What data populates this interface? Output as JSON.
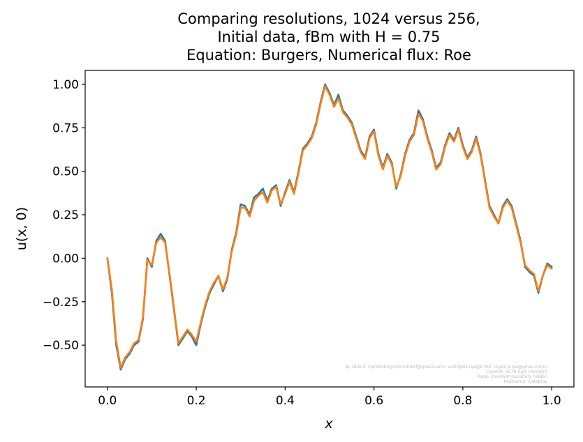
{
  "chart_data": {
    "type": "line",
    "title": [
      "Comparing resolutions, 1024 versus 256,",
      "Initial data, fBm with H = 0.75",
      "Equation: Burgers, Numerical flux: Roe"
    ],
    "xlabel": "x",
    "ylabel": "u(x, 0)",
    "xlim": [
      -0.05,
      1.05
    ],
    "ylim": [
      -0.74,
      1.08
    ],
    "xticks": [
      0.0,
      0.2,
      0.4,
      0.6,
      0.8,
      1.0
    ],
    "xtick_labels": [
      "0.0",
      "0.2",
      "0.4",
      "0.6",
      "0.8",
      "1.0"
    ],
    "yticks": [
      -0.5,
      -0.25,
      0.0,
      0.25,
      0.5,
      0.75,
      1.0
    ],
    "ytick_labels": [
      "−0.50",
      "−0.25",
      "0.00",
      "0.25",
      "0.50",
      "0.75",
      "1.00"
    ],
    "grid": false,
    "legend": "none",
    "series": [
      {
        "color": "#1f77b4",
        "resolution": 1024,
        "x": [
          0.0,
          0.01,
          0.02,
          0.03,
          0.04,
          0.05,
          0.06,
          0.07,
          0.08,
          0.09,
          0.1,
          0.11,
          0.12,
          0.13,
          0.14,
          0.15,
          0.16,
          0.17,
          0.18,
          0.19,
          0.2,
          0.21,
          0.22,
          0.23,
          0.24,
          0.25,
          0.26,
          0.27,
          0.28,
          0.29,
          0.3,
          0.31,
          0.32,
          0.33,
          0.34,
          0.35,
          0.36,
          0.37,
          0.38,
          0.39,
          0.4,
          0.41,
          0.42,
          0.43,
          0.44,
          0.45,
          0.46,
          0.47,
          0.48,
          0.49,
          0.5,
          0.51,
          0.52,
          0.53,
          0.54,
          0.55,
          0.56,
          0.57,
          0.58,
          0.59,
          0.6,
          0.61,
          0.62,
          0.63,
          0.64,
          0.65,
          0.66,
          0.67,
          0.68,
          0.69,
          0.7,
          0.71,
          0.72,
          0.73,
          0.74,
          0.75,
          0.76,
          0.77,
          0.78,
          0.79,
          0.8,
          0.81,
          0.82,
          0.83,
          0.84,
          0.85,
          0.86,
          0.87,
          0.88,
          0.89,
          0.9,
          0.91,
          0.92,
          0.93,
          0.94,
          0.95,
          0.96,
          0.97,
          0.98,
          0.99,
          1.0
        ],
        "y": [
          0.0,
          -0.2,
          -0.5,
          -0.64,
          -0.58,
          -0.55,
          -0.5,
          -0.48,
          -0.35,
          0.0,
          -0.05,
          0.1,
          0.14,
          0.1,
          -0.1,
          -0.3,
          -0.5,
          -0.46,
          -0.42,
          -0.45,
          -0.5,
          -0.38,
          -0.28,
          -0.2,
          -0.15,
          -0.1,
          -0.19,
          -0.12,
          0.05,
          0.15,
          0.31,
          0.3,
          0.25,
          0.35,
          0.37,
          0.4,
          0.33,
          0.4,
          0.42,
          0.3,
          0.38,
          0.45,
          0.38,
          0.5,
          0.63,
          0.66,
          0.7,
          0.78,
          0.9,
          1.0,
          0.95,
          0.88,
          0.94,
          0.85,
          0.82,
          0.78,
          0.7,
          0.62,
          0.58,
          0.7,
          0.74,
          0.6,
          0.52,
          0.6,
          0.55,
          0.4,
          0.48,
          0.6,
          0.68,
          0.72,
          0.85,
          0.8,
          0.7,
          0.62,
          0.52,
          0.55,
          0.65,
          0.72,
          0.68,
          0.75,
          0.65,
          0.58,
          0.62,
          0.7,
          0.6,
          0.45,
          0.3,
          0.25,
          0.2,
          0.3,
          0.34,
          0.3,
          0.2,
          0.1,
          -0.05,
          -0.08,
          -0.1,
          -0.2,
          -0.1,
          -0.03,
          -0.05
        ]
      },
      {
        "color": "#ff7f0e",
        "resolution": 256,
        "x": [
          0.0,
          0.01,
          0.02,
          0.03,
          0.04,
          0.05,
          0.06,
          0.07,
          0.08,
          0.09,
          0.1,
          0.11,
          0.12,
          0.13,
          0.14,
          0.15,
          0.16,
          0.17,
          0.18,
          0.19,
          0.2,
          0.21,
          0.22,
          0.23,
          0.24,
          0.25,
          0.26,
          0.27,
          0.28,
          0.29,
          0.3,
          0.31,
          0.32,
          0.33,
          0.34,
          0.35,
          0.36,
          0.37,
          0.38,
          0.39,
          0.4,
          0.41,
          0.42,
          0.43,
          0.44,
          0.45,
          0.46,
          0.47,
          0.48,
          0.49,
          0.5,
          0.51,
          0.52,
          0.53,
          0.54,
          0.55,
          0.56,
          0.57,
          0.58,
          0.59,
          0.6,
          0.61,
          0.62,
          0.63,
          0.64,
          0.65,
          0.66,
          0.67,
          0.68,
          0.69,
          0.7,
          0.71,
          0.72,
          0.73,
          0.74,
          0.75,
          0.76,
          0.77,
          0.78,
          0.79,
          0.8,
          0.81,
          0.82,
          0.83,
          0.84,
          0.85,
          0.86,
          0.87,
          0.88,
          0.89,
          0.9,
          0.91,
          0.92,
          0.93,
          0.94,
          0.95,
          0.96,
          0.97,
          0.98,
          0.99,
          1.0
        ],
        "y": [
          0.0,
          -0.18,
          -0.48,
          -0.63,
          -0.57,
          -0.54,
          -0.49,
          -0.47,
          -0.34,
          -0.01,
          -0.04,
          0.09,
          0.12,
          0.09,
          -0.09,
          -0.29,
          -0.49,
          -0.45,
          -0.41,
          -0.44,
          -0.48,
          -0.37,
          -0.27,
          -0.19,
          -0.14,
          -0.1,
          -0.18,
          -0.11,
          0.04,
          0.14,
          0.29,
          0.29,
          0.24,
          0.33,
          0.36,
          0.38,
          0.32,
          0.39,
          0.41,
          0.31,
          0.37,
          0.44,
          0.37,
          0.49,
          0.62,
          0.65,
          0.69,
          0.77,
          0.89,
          0.99,
          0.94,
          0.87,
          0.92,
          0.84,
          0.81,
          0.77,
          0.69,
          0.61,
          0.57,
          0.69,
          0.73,
          0.59,
          0.51,
          0.59,
          0.54,
          0.41,
          0.47,
          0.59,
          0.67,
          0.71,
          0.83,
          0.79,
          0.69,
          0.61,
          0.51,
          0.54,
          0.64,
          0.71,
          0.67,
          0.74,
          0.64,
          0.57,
          0.61,
          0.69,
          0.59,
          0.44,
          0.29,
          0.24,
          0.2,
          0.29,
          0.33,
          0.29,
          0.19,
          0.09,
          -0.04,
          -0.07,
          -0.09,
          -0.19,
          -0.1,
          -0.04,
          -0.06
        ]
      }
    ],
    "annotation": [
      "By Ulrik S. Fjordholm@UiO<ulriksf@gmail.com> and Kjetil Lye@ETHZ <kjetil.o.lye@gmail.com>",
      "Commit: 6578 ([git_commit])",
      "Repo: Overleaf repository hidden",
      "Hostname: lyelaptop"
    ]
  }
}
